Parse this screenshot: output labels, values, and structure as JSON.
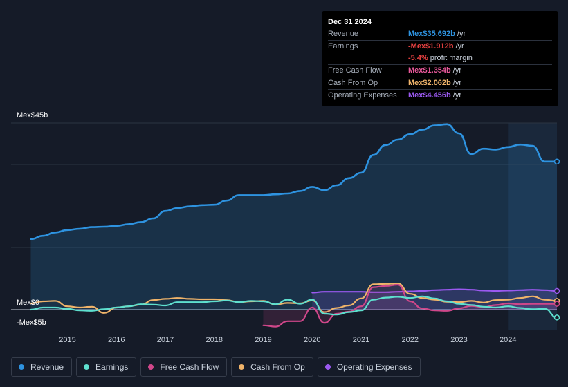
{
  "tooltip": {
    "date": "Dec 31 2024",
    "rows": [
      {
        "label": "Revenue",
        "value": "Mex$35.692b",
        "unit": "/yr",
        "color": "#2e93e0"
      },
      {
        "label": "Earnings",
        "value": "-Mex$1.912b",
        "unit": "/yr",
        "color": "#e84141"
      },
      {
        "label": "",
        "value": "-5.4%",
        "unit": "profit margin",
        "color": "#e84141"
      },
      {
        "label": "Free Cash Flow",
        "value": "Mex$1.354b",
        "unit": "/yr",
        "color": "#e8589a"
      },
      {
        "label": "Cash From Op",
        "value": "Mex$2.062b",
        "unit": "/yr",
        "color": "#f0b46a"
      },
      {
        "label": "Operating Expenses",
        "value": "Mex$4.456b",
        "unit": "/yr",
        "color": "#9b59f0"
      }
    ]
  },
  "legend": [
    {
      "label": "Revenue",
      "color": "#2e93e0"
    },
    {
      "label": "Earnings",
      "color": "#5ee0cf"
    },
    {
      "label": "Free Cash Flow",
      "color": "#d0478a"
    },
    {
      "label": "Cash From Op",
      "color": "#f0b46a"
    },
    {
      "label": "Operating Expenses",
      "color": "#9b59f0"
    }
  ],
  "chart_data": {
    "type": "line",
    "title": "",
    "xlabel": "",
    "ylabel": "",
    "y_labels": {
      "top": "Mex$45b",
      "zero": "Mex$0",
      "bottom": "-Mex$5b"
    },
    "ylim": [
      -5,
      45
    ],
    "xlim": [
      2014.3,
      2025.0
    ],
    "x_ticks": [
      2015,
      2016,
      2017,
      2018,
      2019,
      2020,
      2021,
      2022,
      2023,
      2024
    ],
    "x_tick_labels": [
      "2015",
      "2016",
      "2017",
      "2018",
      "2019",
      "2020",
      "2021",
      "2022",
      "2023",
      "2024"
    ],
    "forecast_start": 2024.0,
    "series": [
      {
        "name": "Revenue",
        "color": "#2e93e0",
        "fill": true,
        "x": [
          2014.25,
          2014.5,
          2014.75,
          2015.0,
          2015.25,
          2015.5,
          2015.75,
          2016.0,
          2016.25,
          2016.5,
          2016.75,
          2017.0,
          2017.25,
          2017.5,
          2017.75,
          2018.0,
          2018.25,
          2018.5,
          2018.75,
          2019.0,
          2019.25,
          2019.5,
          2019.75,
          2020.0,
          2020.25,
          2020.5,
          2020.75,
          2021.0,
          2021.25,
          2021.5,
          2021.75,
          2022.0,
          2022.25,
          2022.5,
          2022.75,
          2023.0,
          2023.25,
          2023.5,
          2023.75,
          2024.0,
          2024.25,
          2024.5,
          2024.75,
          2025.0
        ],
        "values": [
          17.0,
          17.8,
          18.6,
          19.2,
          19.5,
          19.9,
          20.0,
          20.2,
          20.6,
          21.1,
          22.0,
          23.8,
          24.5,
          24.9,
          25.2,
          25.3,
          26.3,
          27.6,
          27.6,
          27.6,
          27.8,
          28.0,
          28.6,
          29.6,
          28.8,
          30.0,
          31.7,
          33.0,
          37.3,
          39.7,
          41.0,
          42.3,
          43.4,
          44.4,
          44.7,
          42.5,
          37.5,
          38.8,
          38.6,
          39.2,
          39.8,
          39.5,
          35.7,
          35.7
        ]
      },
      {
        "name": "Operating Expenses",
        "color": "#9b59f0",
        "fill": true,
        "x": [
          2020.0,
          2020.25,
          2020.5,
          2020.75,
          2021.0,
          2021.25,
          2021.5,
          2021.75,
          2022.0,
          2022.25,
          2022.5,
          2022.75,
          2023.0,
          2023.25,
          2023.5,
          2023.75,
          2024.0,
          2024.25,
          2024.5,
          2024.75,
          2025.0
        ],
        "values": [
          4.1,
          4.3,
          4.3,
          4.3,
          4.3,
          4.2,
          4.2,
          4.3,
          4.4,
          4.5,
          4.7,
          4.8,
          4.9,
          4.8,
          4.6,
          4.5,
          4.6,
          4.7,
          4.8,
          4.7,
          4.5
        ]
      },
      {
        "name": "Cash From Op",
        "color": "#f0b46a",
        "fill": false,
        "x": [
          2014.25,
          2014.5,
          2014.75,
          2015.0,
          2015.25,
          2015.5,
          2015.75,
          2016.0,
          2016.25,
          2016.5,
          2016.75,
          2017.0,
          2017.25,
          2017.5,
          2017.75,
          2018.0,
          2018.25,
          2018.5,
          2018.75,
          2019.0,
          2019.25,
          2019.5,
          2019.75,
          2020.0,
          2020.25,
          2020.5,
          2020.75,
          2021.0,
          2021.25,
          2021.5,
          2021.75,
          2022.0,
          2022.25,
          2022.5,
          2022.75,
          2023.0,
          2023.25,
          2023.5,
          2023.75,
          2024.0,
          2024.25,
          2024.5,
          2024.75,
          2025.0
        ],
        "values": [
          1.5,
          2.0,
          2.1,
          0.8,
          0.5,
          0.7,
          -0.8,
          0.5,
          0.8,
          1.2,
          2.3,
          2.6,
          2.8,
          2.6,
          2.5,
          2.5,
          2.3,
          1.8,
          2.0,
          2.1,
          1.2,
          1.6,
          1.5,
          2.2,
          -0.6,
          0.4,
          1.0,
          2.7,
          6.1,
          6.2,
          6.3,
          3.8,
          2.8,
          2.4,
          1.9,
          1.8,
          2.1,
          1.7,
          2.3,
          2.4,
          2.8,
          3.2,
          2.4,
          2.1
        ]
      },
      {
        "name": "Free Cash Flow",
        "color": "#d0478a",
        "fill": true,
        "x": [
          2019.0,
          2019.25,
          2019.5,
          2019.75,
          2020.0,
          2020.25,
          2020.5,
          2020.75,
          2021.0,
          2021.25,
          2021.5,
          2021.75,
          2022.0,
          2022.25,
          2022.5,
          2022.75,
          2023.0,
          2023.25,
          2023.5,
          2023.75,
          2024.0,
          2024.25,
          2024.5,
          2024.75,
          2025.0
        ],
        "values": [
          -3.8,
          -4.1,
          -2.8,
          -2.8,
          0.5,
          -3.2,
          -1.0,
          -0.5,
          0.8,
          5.4,
          5.7,
          6.0,
          2.0,
          0.3,
          -0.2,
          -0.3,
          0.3,
          0.9,
          0.6,
          1.1,
          1.5,
          1.3,
          1.4,
          1.4,
          1.4
        ]
      },
      {
        "name": "Earnings",
        "color": "#5ee0cf",
        "fill": false,
        "x": [
          2014.25,
          2014.5,
          2014.75,
          2015.0,
          2015.25,
          2015.5,
          2015.75,
          2016.0,
          2016.25,
          2016.5,
          2016.75,
          2017.0,
          2017.25,
          2017.5,
          2017.75,
          2018.0,
          2018.25,
          2018.5,
          2018.75,
          2019.0,
          2019.25,
          2019.5,
          2019.75,
          2020.0,
          2020.25,
          2020.5,
          2020.75,
          2021.0,
          2021.25,
          2021.5,
          2021.75,
          2022.0,
          2022.25,
          2022.5,
          2022.75,
          2023.0,
          2023.25,
          2023.5,
          2023.75,
          2024.0,
          2024.25,
          2024.5,
          2024.75,
          2025.0
        ],
        "values": [
          0.0,
          0.5,
          0.5,
          0.2,
          -0.2,
          -0.3,
          0.1,
          0.5,
          0.8,
          1.3,
          1.2,
          1.0,
          1.8,
          1.8,
          1.8,
          2.0,
          2.2,
          1.8,
          2.1,
          2.0,
          1.3,
          2.4,
          1.4,
          2.4,
          -1.0,
          -1.2,
          -0.6,
          -0.2,
          2.4,
          2.9,
          3.1,
          2.8,
          3.2,
          2.7,
          2.0,
          1.4,
          1.1,
          0.7,
          0.5,
          0.8,
          0.4,
          0.1,
          0.2,
          -1.9
        ]
      }
    ]
  }
}
